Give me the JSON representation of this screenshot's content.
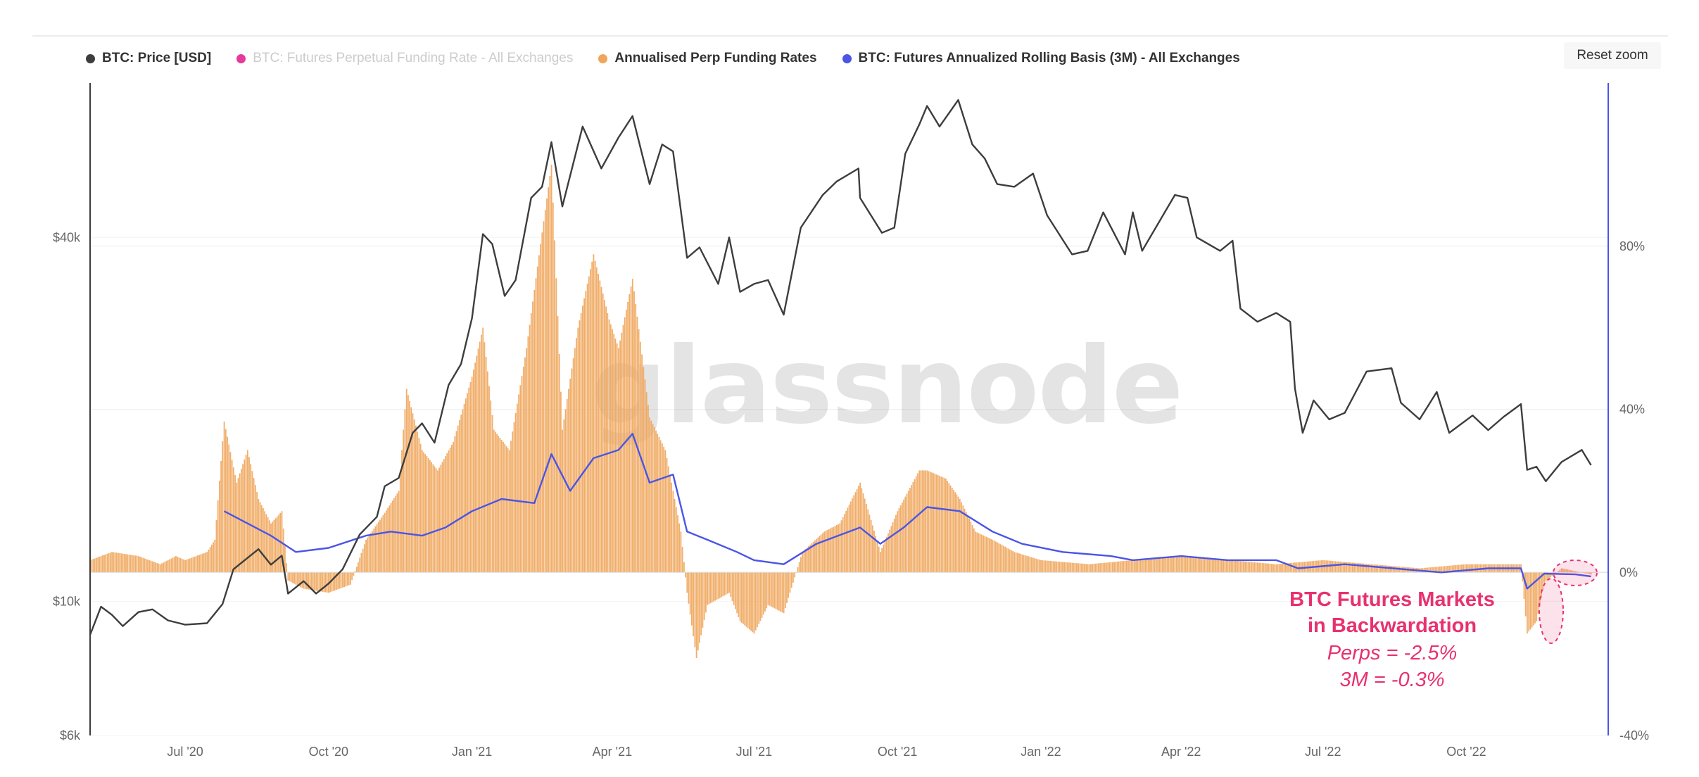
{
  "legend": [
    {
      "label": "BTC: Price [USD]",
      "color": "#3d3d3d",
      "visible": true
    },
    {
      "label": "BTC: Futures Perpetual Funding Rate - All Exchanges",
      "color": "#e6399b",
      "visible": false
    },
    {
      "label": "Annualised Perp Funding Rates",
      "color": "#f0a55a",
      "visible": true
    },
    {
      "label": "BTC: Futures Annualized Rolling Basis (3M) - All Exchanges",
      "color": "#4a55e6",
      "visible": true
    }
  ],
  "reset_zoom_label": "Reset zoom",
  "watermark": "glassnode",
  "annotation": {
    "title_line1": "BTC Futures Markets",
    "title_line2": "in Backwardation",
    "perps": "Perps = -2.5%",
    "threem": "3M = -0.3%"
  },
  "chart_data": {
    "type": "line",
    "x_axis": {
      "type": "date",
      "range": [
        "2020-05-01",
        "2022-12-31"
      ],
      "ticks": [
        {
          "label": "Jul '20",
          "date": "2020-07-01"
        },
        {
          "label": "Oct '20",
          "date": "2020-10-01"
        },
        {
          "label": "Jan '21",
          "date": "2021-01-01"
        },
        {
          "label": "Apr '21",
          "date": "2021-04-01"
        },
        {
          "label": "Jul '21",
          "date": "2021-07-01"
        },
        {
          "label": "Oct '21",
          "date": "2021-10-01"
        },
        {
          "label": "Jan '22",
          "date": "2022-01-01"
        },
        {
          "label": "Apr '22",
          "date": "2022-04-01"
        },
        {
          "label": "Jul '22",
          "date": "2022-07-01"
        },
        {
          "label": "Oct '22",
          "date": "2022-10-01"
        }
      ]
    },
    "y_left": {
      "scale": "log",
      "unit": "USD",
      "range": [
        6000,
        72000
      ],
      "ticks": [
        {
          "label": "$6k",
          "value": 6000
        },
        {
          "label": "$10k",
          "value": 10000
        },
        {
          "label": "$40k",
          "value": 40000
        }
      ]
    },
    "y_right": {
      "scale": "linear",
      "unit": "%",
      "range": [
        -40,
        120
      ],
      "ticks": [
        {
          "label": "-40%",
          "value": -40
        },
        {
          "label": "0%",
          "value": 0
        },
        {
          "label": "40%",
          "value": 40
        },
        {
          "label": "80%",
          "value": 80
        }
      ]
    },
    "grid": true,
    "series": [
      {
        "name": "BTC: Price [USD]",
        "axis": "left",
        "color": "#3d3d3d",
        "style": "line",
        "points": [
          [
            "2020-05-01",
            8800
          ],
          [
            "2020-05-08",
            9800
          ],
          [
            "2020-05-15",
            9500
          ],
          [
            "2020-05-22",
            9100
          ],
          [
            "2020-06-01",
            9600
          ],
          [
            "2020-06-10",
            9700
          ],
          [
            "2020-06-20",
            9300
          ],
          [
            "2020-07-01",
            9150
          ],
          [
            "2020-07-15",
            9200
          ],
          [
            "2020-07-25",
            9900
          ],
          [
            "2020-08-01",
            11300
          ],
          [
            "2020-08-10",
            11800
          ],
          [
            "2020-08-17",
            12200
          ],
          [
            "2020-08-25",
            11500
          ],
          [
            "2020-09-01",
            11900
          ],
          [
            "2020-09-05",
            10300
          ],
          [
            "2020-09-15",
            10800
          ],
          [
            "2020-09-23",
            10300
          ],
          [
            "2020-10-01",
            10700
          ],
          [
            "2020-10-10",
            11300
          ],
          [
            "2020-10-21",
            12900
          ],
          [
            "2020-11-01",
            13800
          ],
          [
            "2020-11-06",
            15500
          ],
          [
            "2020-11-15",
            16000
          ],
          [
            "2020-11-24",
            19000
          ],
          [
            "2020-11-30",
            19700
          ],
          [
            "2020-12-08",
            18300
          ],
          [
            "2020-12-17",
            22800
          ],
          [
            "2020-12-25",
            24700
          ],
          [
            "2021-01-01",
            29400
          ],
          [
            "2021-01-08",
            40500
          ],
          [
            "2021-01-14",
            39000
          ],
          [
            "2021-01-22",
            32000
          ],
          [
            "2021-01-29",
            34000
          ],
          [
            "2021-02-08",
            46500
          ],
          [
            "2021-02-15",
            48500
          ],
          [
            "2021-02-21",
            57500
          ],
          [
            "2021-02-28",
            45000
          ],
          [
            "2021-03-13",
            61000
          ],
          [
            "2021-03-25",
            52000
          ],
          [
            "2021-04-05",
            58500
          ],
          [
            "2021-04-14",
            63500
          ],
          [
            "2021-04-25",
            49000
          ],
          [
            "2021-05-03",
            57000
          ],
          [
            "2021-05-10",
            55500
          ],
          [
            "2021-05-19",
            37000
          ],
          [
            "2021-05-27",
            38500
          ],
          [
            "2021-06-08",
            33500
          ],
          [
            "2021-06-15",
            40000
          ],
          [
            "2021-06-22",
            32500
          ],
          [
            "2021-07-01",
            33500
          ],
          [
            "2021-07-10",
            34000
          ],
          [
            "2021-07-20",
            29800
          ],
          [
            "2021-07-31",
            41500
          ],
          [
            "2021-08-14",
            47000
          ],
          [
            "2021-08-23",
            49500
          ],
          [
            "2021-09-06",
            52000
          ],
          [
            "2021-09-07",
            46500
          ],
          [
            "2021-09-21",
            40700
          ],
          [
            "2021-09-29",
            41500
          ],
          [
            "2021-10-06",
            55000
          ],
          [
            "2021-10-15",
            61500
          ],
          [
            "2021-10-20",
            66000
          ],
          [
            "2021-10-28",
            61000
          ],
          [
            "2021-11-09",
            67500
          ],
          [
            "2021-11-18",
            57000
          ],
          [
            "2021-11-26",
            54000
          ],
          [
            "2021-12-04",
            49000
          ],
          [
            "2021-12-15",
            48500
          ],
          [
            "2021-12-27",
            51000
          ],
          [
            "2022-01-05",
            43500
          ],
          [
            "2022-01-21",
            37500
          ],
          [
            "2022-01-31",
            38000
          ],
          [
            "2022-02-10",
            44000
          ],
          [
            "2022-02-24",
            37500
          ],
          [
            "2022-03-01",
            44000
          ],
          [
            "2022-03-07",
            38000
          ],
          [
            "2022-03-28",
            47000
          ],
          [
            "2022-04-05",
            46500
          ],
          [
            "2022-04-11",
            40000
          ],
          [
            "2022-04-26",
            38000
          ],
          [
            "2022-05-04",
            39500
          ],
          [
            "2022-05-09",
            30500
          ],
          [
            "2022-05-20",
            29000
          ],
          [
            "2022-06-01",
            30000
          ],
          [
            "2022-06-10",
            29000
          ],
          [
            "2022-06-13",
            22500
          ],
          [
            "2022-06-18",
            19000
          ],
          [
            "2022-06-25",
            21500
          ],
          [
            "2022-07-05",
            20000
          ],
          [
            "2022-07-15",
            20500
          ],
          [
            "2022-07-29",
            24000
          ],
          [
            "2022-08-14",
            24300
          ],
          [
            "2022-08-20",
            21300
          ],
          [
            "2022-09-01",
            20000
          ],
          [
            "2022-09-12",
            22200
          ],
          [
            "2022-09-20",
            19000
          ],
          [
            "2022-10-05",
            20300
          ],
          [
            "2022-10-15",
            19200
          ],
          [
            "2022-10-25",
            20200
          ],
          [
            "2022-11-05",
            21200
          ],
          [
            "2022-11-09",
            16500
          ],
          [
            "2022-11-15",
            16700
          ],
          [
            "2022-11-21",
            15800
          ],
          [
            "2022-12-01",
            17000
          ],
          [
            "2022-12-14",
            17800
          ],
          [
            "2022-12-20",
            16800
          ]
        ]
      },
      {
        "name": "Annualised Perp Funding Rates",
        "axis": "right",
        "color": "#f0a55a",
        "style": "column",
        "points": [
          [
            "2020-05-01",
            3
          ],
          [
            "2020-05-15",
            5
          ],
          [
            "2020-06-01",
            4
          ],
          [
            "2020-06-15",
            2
          ],
          [
            "2020-06-25",
            4
          ],
          [
            "2020-07-01",
            3
          ],
          [
            "2020-07-15",
            5
          ],
          [
            "2020-07-20",
            8
          ],
          [
            "2020-07-26",
            37
          ],
          [
            "2020-08-03",
            22
          ],
          [
            "2020-08-10",
            30
          ],
          [
            "2020-08-17",
            18
          ],
          [
            "2020-08-25",
            12
          ],
          [
            "2020-09-01",
            15
          ],
          [
            "2020-09-05",
            -2
          ],
          [
            "2020-09-15",
            -4
          ],
          [
            "2020-10-01",
            -5
          ],
          [
            "2020-10-15",
            -3
          ],
          [
            "2020-10-25",
            8
          ],
          [
            "2020-11-05",
            14
          ],
          [
            "2020-11-15",
            20
          ],
          [
            "2020-11-20",
            45
          ],
          [
            "2020-11-30",
            30
          ],
          [
            "2020-12-10",
            25
          ],
          [
            "2020-12-20",
            32
          ],
          [
            "2021-01-01",
            48
          ],
          [
            "2021-01-08",
            60
          ],
          [
            "2021-01-15",
            35
          ],
          [
            "2021-01-25",
            30
          ],
          [
            "2021-02-05",
            55
          ],
          [
            "2021-02-12",
            75
          ],
          [
            "2021-02-21",
            100
          ],
          [
            "2021-02-28",
            35
          ],
          [
            "2021-03-10",
            60
          ],
          [
            "2021-03-20",
            78
          ],
          [
            "2021-03-30",
            62
          ],
          [
            "2021-04-05",
            55
          ],
          [
            "2021-04-14",
            72
          ],
          [
            "2021-04-25",
            38
          ],
          [
            "2021-05-05",
            30
          ],
          [
            "2021-05-15",
            10
          ],
          [
            "2021-05-19",
            -5
          ],
          [
            "2021-05-25",
            -21
          ],
          [
            "2021-06-01",
            -8
          ],
          [
            "2021-06-15",
            -5
          ],
          [
            "2021-06-22",
            -12
          ],
          [
            "2021-07-01",
            -15
          ],
          [
            "2021-07-10",
            -8
          ],
          [
            "2021-07-20",
            -10
          ],
          [
            "2021-08-01",
            5
          ],
          [
            "2021-08-15",
            10
          ],
          [
            "2021-08-25",
            12
          ],
          [
            "2021-09-07",
            22
          ],
          [
            "2021-09-20",
            5
          ],
          [
            "2021-10-01",
            15
          ],
          [
            "2021-10-15",
            25
          ],
          [
            "2021-10-20",
            25
          ],
          [
            "2021-11-01",
            23
          ],
          [
            "2021-11-10",
            18
          ],
          [
            "2021-11-20",
            10
          ],
          [
            "2021-12-01",
            8
          ],
          [
            "2021-12-15",
            5
          ],
          [
            "2022-01-01",
            3
          ],
          [
            "2022-02-01",
            2
          ],
          [
            "2022-03-01",
            3
          ],
          [
            "2022-04-01",
            4
          ],
          [
            "2022-05-01",
            3
          ],
          [
            "2022-06-01",
            2
          ],
          [
            "2022-07-01",
            3
          ],
          [
            "2022-08-01",
            2
          ],
          [
            "2022-09-01",
            1
          ],
          [
            "2022-10-01",
            2
          ],
          [
            "2022-11-05",
            2
          ],
          [
            "2022-11-09",
            -15
          ],
          [
            "2022-11-15",
            -12
          ],
          [
            "2022-11-20",
            -2.5
          ],
          [
            "2022-12-01",
            1
          ],
          [
            "2022-12-20",
            -0.5
          ]
        ]
      },
      {
        "name": "BTC: Futures Annualized Rolling Basis (3M) - All Exchanges",
        "axis": "right",
        "color": "#4a55e6",
        "style": "line",
        "points": [
          [
            "2020-07-26",
            15
          ],
          [
            "2020-08-10",
            12
          ],
          [
            "2020-08-25",
            9
          ],
          [
            "2020-09-10",
            5
          ],
          [
            "2020-10-01",
            6
          ],
          [
            "2020-10-25",
            9
          ],
          [
            "2020-11-10",
            10
          ],
          [
            "2020-11-30",
            9
          ],
          [
            "2020-12-15",
            11
          ],
          [
            "2021-01-01",
            15
          ],
          [
            "2021-01-20",
            18
          ],
          [
            "2021-02-10",
            17
          ],
          [
            "2021-02-21",
            29
          ],
          [
            "2021-03-05",
            20
          ],
          [
            "2021-03-20",
            28
          ],
          [
            "2021-04-05",
            30
          ],
          [
            "2021-04-14",
            34
          ],
          [
            "2021-04-25",
            22
          ],
          [
            "2021-05-10",
            24
          ],
          [
            "2021-05-19",
            10
          ],
          [
            "2021-06-01",
            8
          ],
          [
            "2021-06-20",
            5
          ],
          [
            "2021-07-01",
            3
          ],
          [
            "2021-07-20",
            2
          ],
          [
            "2021-08-10",
            7
          ],
          [
            "2021-09-07",
            11
          ],
          [
            "2021-09-20",
            7
          ],
          [
            "2021-10-05",
            11
          ],
          [
            "2021-10-20",
            16
          ],
          [
            "2021-11-10",
            15
          ],
          [
            "2021-12-01",
            10
          ],
          [
            "2021-12-20",
            7
          ],
          [
            "2022-01-15",
            5
          ],
          [
            "2022-02-15",
            4
          ],
          [
            "2022-03-01",
            3
          ],
          [
            "2022-04-01",
            4
          ],
          [
            "2022-05-01",
            3
          ],
          [
            "2022-06-01",
            3
          ],
          [
            "2022-06-15",
            1
          ],
          [
            "2022-07-15",
            2
          ],
          [
            "2022-08-15",
            1
          ],
          [
            "2022-09-15",
            0
          ],
          [
            "2022-10-15",
            1
          ],
          [
            "2022-11-05",
            1
          ],
          [
            "2022-11-09",
            -4
          ],
          [
            "2022-11-20",
            -0.3
          ],
          [
            "2022-12-10",
            -0.5
          ],
          [
            "2022-12-20",
            -1
          ]
        ]
      }
    ]
  }
}
